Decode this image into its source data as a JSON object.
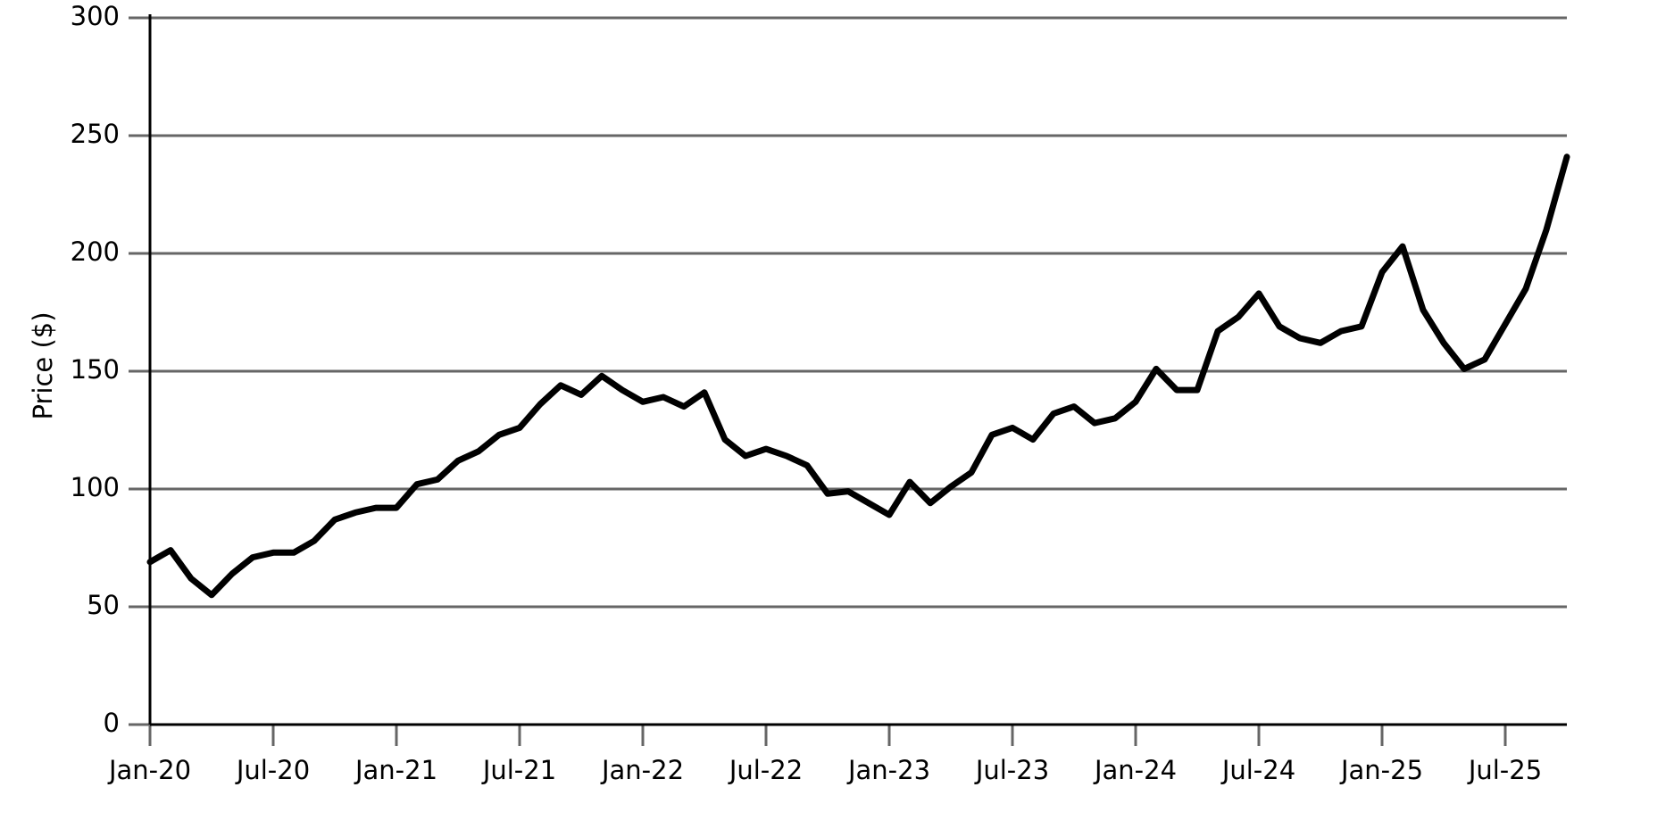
{
  "chart_data": {
    "type": "line",
    "y_label": "Price ($)",
    "x": [
      "2020-01",
      "2020-02",
      "2020-03",
      "2020-04",
      "2020-05",
      "2020-06",
      "2020-07",
      "2020-08",
      "2020-09",
      "2020-10",
      "2020-11",
      "2020-12",
      "2021-01",
      "2021-02",
      "2021-03",
      "2021-04",
      "2021-05",
      "2021-06",
      "2021-07",
      "2021-08",
      "2021-09",
      "2021-10",
      "2021-11",
      "2021-12",
      "2022-01",
      "2022-02",
      "2022-03",
      "2022-04",
      "2022-05",
      "2022-06",
      "2022-07",
      "2022-08",
      "2022-09",
      "2022-10",
      "2022-11",
      "2022-12",
      "2023-01",
      "2023-02",
      "2023-03",
      "2023-04",
      "2023-05",
      "2023-06",
      "2023-07",
      "2023-08",
      "2023-09",
      "2023-10",
      "2023-11",
      "2023-12",
      "2024-01",
      "2024-02",
      "2024-03",
      "2024-04",
      "2024-05",
      "2024-06",
      "2024-07",
      "2024-08",
      "2024-09",
      "2024-10",
      "2024-11",
      "2024-12",
      "2025-01",
      "2025-02",
      "2025-03",
      "2025-04",
      "2025-05",
      "2025-06",
      "2025-07",
      "2025-08",
      "2025-09",
      "2025-10"
    ],
    "series": [
      {
        "name": "Price",
        "color": "#000000",
        "values": [
          69,
          74,
          62,
          55,
          64,
          71,
          73,
          73,
          78,
          87,
          90,
          92,
          92,
          102,
          104,
          112,
          116,
          123,
          126,
          136,
          144,
          140,
          148,
          142,
          137,
          139,
          135,
          141,
          121,
          114,
          117,
          114,
          110,
          98,
          99,
          94,
          89,
          103,
          94,
          101,
          107,
          123,
          126,
          121,
          132,
          135,
          128,
          130,
          137,
          151,
          142,
          142,
          167,
          173,
          183,
          169,
          164,
          162,
          167,
          169,
          192,
          203,
          176,
          162,
          151,
          155,
          170,
          185,
          210,
          241
        ]
      }
    ],
    "xlim": [
      "2020-01",
      "2025-10"
    ],
    "xticks": [
      {
        "value": "2020-01",
        "label": "Jan-20"
      },
      {
        "value": "2020-07",
        "label": "Jul-20"
      },
      {
        "value": "2021-01",
        "label": "Jan-21"
      },
      {
        "value": "2021-07",
        "label": "Jul-21"
      },
      {
        "value": "2022-01",
        "label": "Jan-22"
      },
      {
        "value": "2022-07",
        "label": "Jul-22"
      },
      {
        "value": "2023-01",
        "label": "Jan-23"
      },
      {
        "value": "2023-07",
        "label": "Jul-23"
      },
      {
        "value": "2024-01",
        "label": "Jan-24"
      },
      {
        "value": "2024-07",
        "label": "Jul-24"
      },
      {
        "value": "2025-01",
        "label": "Jan-25"
      },
      {
        "value": "2025-07",
        "label": "Jul-25"
      }
    ],
    "ylim": [
      0,
      300
    ],
    "yticks": [
      0,
      50,
      100,
      150,
      200,
      250,
      300
    ],
    "grid": true
  }
}
